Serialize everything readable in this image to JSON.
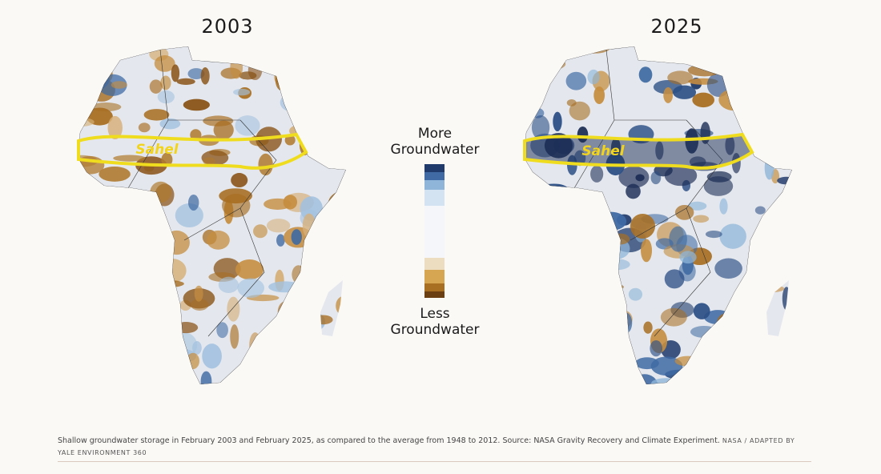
{
  "maps": [
    {
      "year": "2003",
      "region_label": "Sahel"
    },
    {
      "year": "2025",
      "region_label": "Sahel"
    }
  ],
  "legend": {
    "top_lines": [
      "More",
      "Groundwater"
    ],
    "bottom_lines": [
      "Less",
      "Groundwater"
    ]
  },
  "caption": {
    "text": "Shallow groundwater storage in February 2003 and February 2025, as compared to the average from 1948 to 2012. Source: NASA Gravity Recovery and Climate Experiment.",
    "credit": "NASA / ADAPTED BY YALE ENVIRONMENT 360"
  }
}
